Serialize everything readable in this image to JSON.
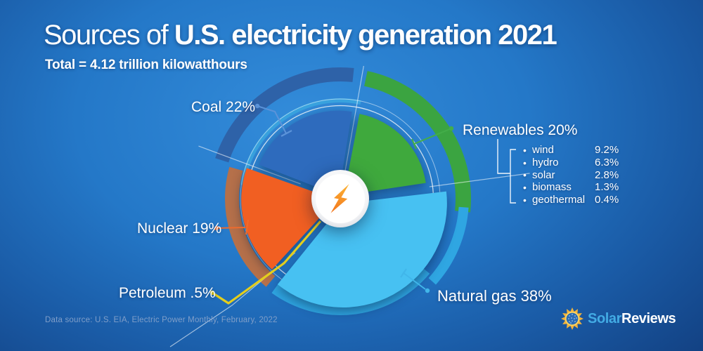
{
  "chart_data": {
    "type": "pie",
    "title_light": "Sources of ",
    "title_bold": "U.S. electricity generation 2021",
    "title": "Sources of U.S. electricity generation 2021",
    "subtitle": "Total = 4.12 trillion kilowatthours",
    "total": "4.12 trillion kilowatthours",
    "rotation_deg": 10,
    "legend_position": "callouts",
    "slices": [
      {
        "label": "Renewables",
        "pct": 20,
        "display": "Renewables 20%",
        "color": "#3fa93d",
        "arc_color": "#3ba441",
        "leader_color": "#43ad49"
      },
      {
        "label": "Natural gas",
        "pct": 38,
        "display": "Natural gas 38%",
        "color": "#47c1f2",
        "arc_color": "#2fa6e2",
        "leader_color": "#41b6ea"
      },
      {
        "label": "Petroleum",
        "pct": 0.5,
        "display": "Petroleum .5%",
        "color": "#e3ce1d",
        "arc_color": "#e3ce1d",
        "leader_color": "#e3ce1d"
      },
      {
        "label": "Nuclear",
        "pct": 19,
        "display": "Nuclear 19%",
        "color": "#f15f22",
        "arc_color": "#b5704a",
        "leader_color": "#ee6b2d"
      },
      {
        "label": "Coal",
        "pct": 22,
        "display": "Coal 22%",
        "color": "#2e6bbd",
        "arc_color": "#2e62a8",
        "leader_color": "#5b93d9"
      }
    ],
    "renewables_breakdown": [
      {
        "name": "wind",
        "value": "9.2%"
      },
      {
        "name": "hydro",
        "value": "6.3%"
      },
      {
        "name": "solar",
        "value": "2.8%"
      },
      {
        "name": "biomass",
        "value": "1.3%"
      },
      {
        "name": "geothermal",
        "value": "0.4%"
      }
    ],
    "center_icon": "lightning-bolt",
    "bolt_colors": {
      "top": "#fcb434",
      "bottom": "#f2741c"
    }
  },
  "footer": {
    "source": "Data source: U.S. EIA, Electric Power Monthly, February, 2022"
  },
  "logo": {
    "part1": "Solar",
    "part2": "Reviews",
    "solar_color": "#42abe4",
    "reviews_color": "#ffffff",
    "sun_ray_color": "#f2b33c",
    "sun_ring_color": "#ffd965",
    "sun_core_color": "#2a6ab3"
  }
}
